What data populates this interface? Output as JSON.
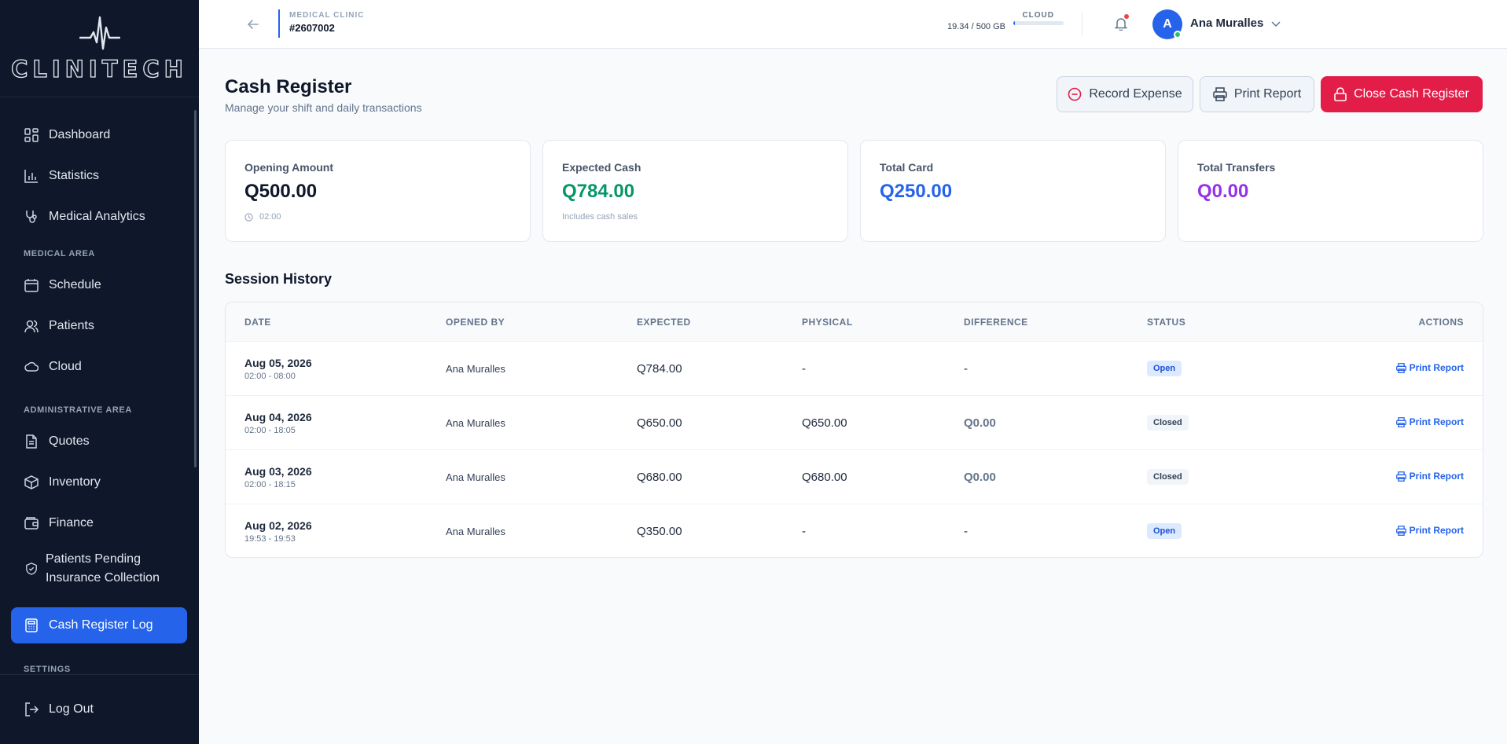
{
  "app": {
    "brand": "CLINITECH"
  },
  "sidebar": {
    "items": [
      {
        "label": "Dashboard",
        "icon": "dashboard-icon"
      },
      {
        "label": "Statistics",
        "icon": "bar-chart-icon"
      },
      {
        "label": "Medical Analytics",
        "icon": "stethoscope-icon"
      },
      {
        "label": "Schedule",
        "icon": "calendar-icon"
      },
      {
        "label": "Patients",
        "icon": "users-icon"
      },
      {
        "label": "Cloud",
        "icon": "cloud-icon"
      },
      {
        "label": "Quotes",
        "icon": "document-icon"
      },
      {
        "label": "Inventory",
        "icon": "box-icon"
      },
      {
        "label": "Finance",
        "icon": "wallet-icon"
      },
      {
        "label": "Patients Pending Insurance Collection",
        "icon": "shield-check-icon"
      },
      {
        "label": "Cash Register Log",
        "icon": "calculator-icon",
        "active": true
      }
    ],
    "sections": {
      "medical": "MEDICAL AREA",
      "administrative": "ADMINISTRATIVE AREA",
      "settings": "SETTINGS"
    },
    "logout": "Log Out"
  },
  "header": {
    "clinic_label": "MEDICAL CLINIC",
    "clinic_id": "#2607002",
    "cloud_label": "CLOUD",
    "cloud_usage": "19.34 / 500 GB",
    "cloud_fraction": 0.0387,
    "user_initial": "A",
    "user_name": "Ana Muralles"
  },
  "page": {
    "title": "Cash Register",
    "subtitle": "Manage your shift and daily transactions",
    "buttons": {
      "record_expense": "Record Expense",
      "print_report": "Print Report",
      "close_register": "Close Cash Register"
    }
  },
  "cards": [
    {
      "label": "Opening Amount",
      "value": "Q500.00",
      "note": "02:00",
      "color": "#0f172a"
    },
    {
      "label": "Expected Cash",
      "value": "Q784.00",
      "note": "Includes cash sales",
      "color": "#059669"
    },
    {
      "label": "Total Card",
      "value": "Q250.00",
      "note": "",
      "color": "#2563eb"
    },
    {
      "label": "Total Transfers",
      "value": "Q0.00",
      "note": "",
      "color": "#9333ea"
    }
  ],
  "history": {
    "title": "Session History",
    "columns": [
      "DATE",
      "OPENED BY",
      "EXPECTED",
      "PHYSICAL",
      "DIFFERENCE",
      "STATUS",
      "ACTIONS"
    ],
    "rows": [
      {
        "date": "Aug 05, 2026",
        "time": "02:00 - 08:00",
        "opened_by": "Ana Muralles",
        "expected": "Q784.00",
        "physical": "-",
        "difference": "-",
        "status": "Open",
        "action": "Print Report"
      },
      {
        "date": "Aug 04, 2026",
        "time": "02:00 - 18:05",
        "opened_by": "Ana Muralles",
        "expected": "Q650.00",
        "physical": "Q650.00",
        "difference": "Q0.00",
        "status": "Closed",
        "action": "Print Report"
      },
      {
        "date": "Aug 03, 2026",
        "time": "02:00 - 18:15",
        "opened_by": "Ana Muralles",
        "expected": "Q680.00",
        "physical": "Q680.00",
        "difference": "Q0.00",
        "status": "Closed",
        "action": "Print Report"
      },
      {
        "date": "Aug 02, 2026",
        "time": "19:53 - 19:53",
        "opened_by": "Ana Muralles",
        "expected": "Q350.00",
        "physical": "-",
        "difference": "-",
        "status": "Open",
        "action": "Print Report"
      }
    ]
  }
}
